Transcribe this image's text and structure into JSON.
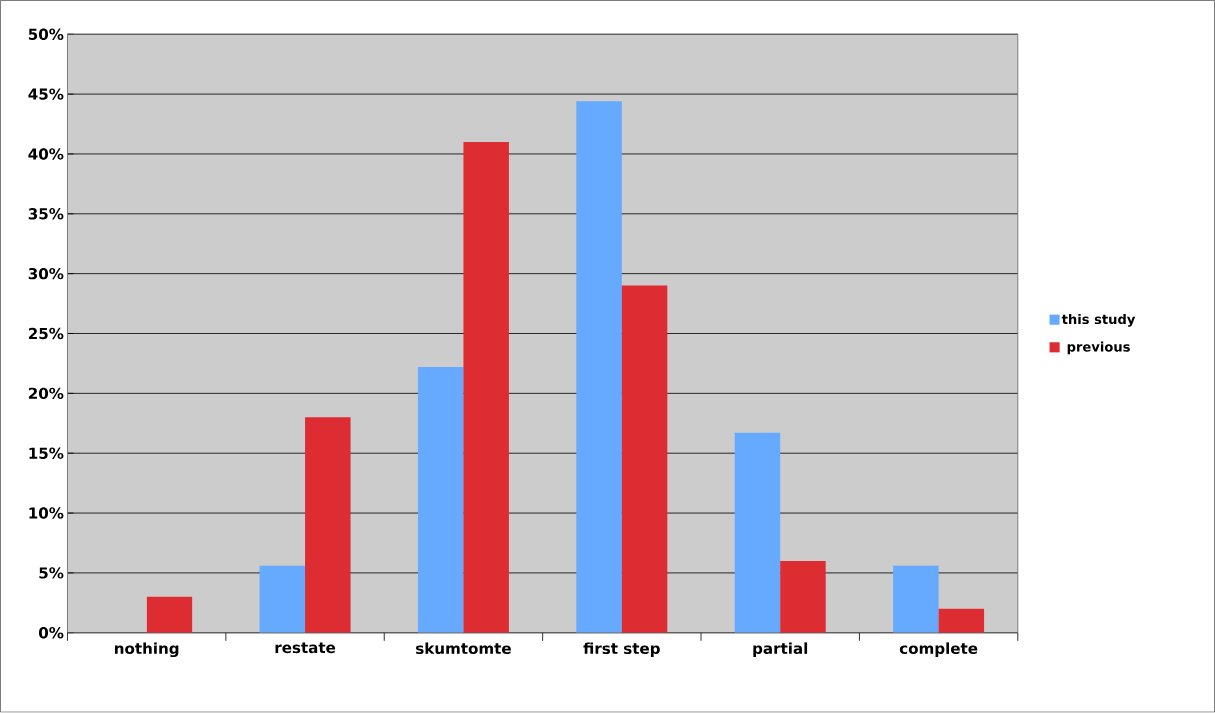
{
  "chart_data": {
    "type": "bar",
    "categories": [
      "nothing",
      "restate",
      "skumtomte",
      "first step",
      "partial",
      "complete"
    ],
    "series": [
      {
        "name": "this study",
        "color": "#66aaff",
        "values": [
          0,
          5.6,
          22.2,
          44.4,
          16.7,
          5.6
        ]
      },
      {
        "name": "previous",
        "color": "#dd2d32",
        "values": [
          3,
          18,
          41,
          29,
          6,
          2
        ]
      }
    ],
    "ylim": [
      0,
      50
    ],
    "yticks": [
      {
        "value": 0,
        "label": "0%"
      },
      {
        "value": 5,
        "label": "5%"
      },
      {
        "value": 10,
        "label": "10%"
      },
      {
        "value": 15,
        "label": "15%"
      },
      {
        "value": 20,
        "label": "20%"
      },
      {
        "value": 25,
        "label": "25%"
      },
      {
        "value": 30,
        "label": "30%"
      },
      {
        "value": 35,
        "label": "35%"
      },
      {
        "value": 40,
        "label": "40%"
      },
      {
        "value": 45,
        "label": "45%"
      },
      {
        "value": 50,
        "label": "50%"
      }
    ],
    "grid": "y",
    "legend": "right"
  }
}
